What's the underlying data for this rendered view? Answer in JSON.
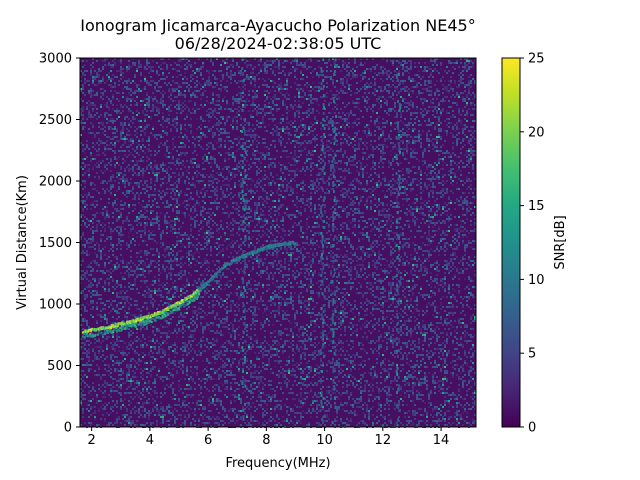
{
  "chart_data": {
    "type": "heatmap",
    "title": "Ionogram Jicamarca-Ayacucho Polarization NE45°",
    "subtitle": "06/28/2024-02:38:05 UTC",
    "xlabel": "Frequency(MHz)",
    "ylabel": "Virtual Distance(Km)",
    "xlim": [
      1.6,
      15.2
    ],
    "ylim": [
      0,
      3000
    ],
    "xticks": [
      2,
      4,
      6,
      8,
      10,
      12,
      14
    ],
    "yticks": [
      0,
      500,
      1000,
      1500,
      2000,
      2500,
      3000
    ],
    "colorbar": {
      "label": "SNR[dB]",
      "range": [
        0,
        25
      ],
      "ticks": [
        0,
        5,
        10,
        15,
        20,
        25
      ],
      "colormap": "viridis"
    },
    "traces": [
      {
        "description": "bright echo trace",
        "points": [
          [
            1.7,
            780
          ],
          [
            2.5,
            810
          ],
          [
            3.0,
            840
          ],
          [
            3.5,
            870
          ],
          [
            4.0,
            900
          ],
          [
            4.5,
            950
          ],
          [
            5.0,
            1010
          ],
          [
            5.5,
            1080
          ],
          [
            5.7,
            1120
          ]
        ]
      },
      {
        "description": "faint continuation",
        "points": [
          [
            5.7,
            1120
          ],
          [
            6.0,
            1180
          ],
          [
            6.5,
            1300
          ],
          [
            7.0,
            1370
          ],
          [
            7.5,
            1420
          ],
          [
            8.0,
            1460
          ],
          [
            8.5,
            1490
          ],
          [
            9.0,
            1500
          ]
        ]
      }
    ],
    "vertical_bands_mhz": [
      7.2,
      9.9,
      10.3,
      12.5
    ]
  }
}
